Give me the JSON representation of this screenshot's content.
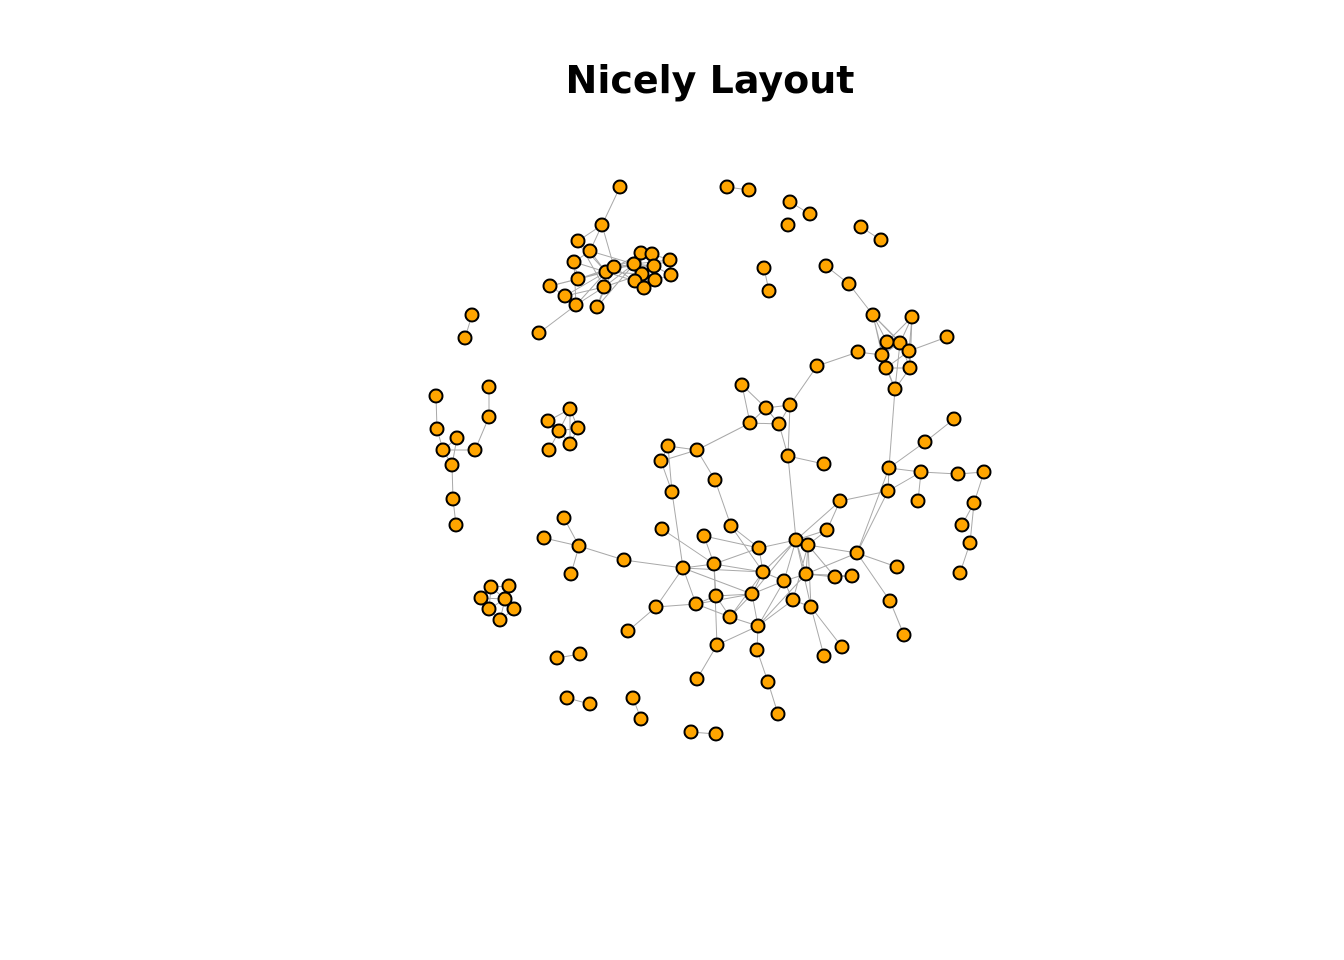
{
  "title": "Nicely Layout",
  "style": {
    "node_fill": "#FFA500",
    "node_stroke": "#000000",
    "edge_color": "#A9A9A9",
    "background": "#FFFFFF"
  }
}
